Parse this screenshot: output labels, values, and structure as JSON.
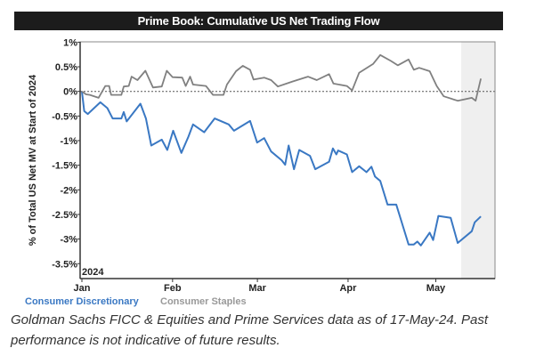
{
  "chart_data": {
    "type": "line",
    "title": "Prime Book: Cumulative US Net Trading Flow",
    "ylabel": "% of Total US Net MV at Start of 2024",
    "xlabel": "",
    "x_unit": "day of 2024 (0 = Jan 1)",
    "ylim": [
      -3.8,
      1.0
    ],
    "yticks": [
      1,
      0.5,
      0,
      -0.5,
      -1,
      -1.5,
      -2,
      -2.5,
      -3,
      -3.5
    ],
    "ytick_labels": [
      "1%",
      "0.5%",
      "0%",
      "-0.5%",
      "-1%",
      "-1.5%",
      "-2%",
      "-2.5%",
      "-3%",
      "-3.5%"
    ],
    "xticks": [
      0,
      31,
      60,
      91,
      121
    ],
    "xtick_labels": [
      "Jan",
      "Feb",
      "Mar",
      "Apr",
      "May"
    ],
    "year_label": "2024",
    "shaded_region": [
      129.7,
      139
    ],
    "reference_line": 0,
    "legend_position": "bottom-left",
    "series": [
      {
        "name": "Consumer Discretionary",
        "color": "#3a78c3",
        "x": [
          0,
          0.8,
          2,
          6.3,
          8.7,
          10.5,
          13.5,
          14.3,
          15.3,
          20,
          21.9,
          23.7,
          27.3,
          29.2,
          31.2,
          34,
          36.4,
          38,
          41.8,
          45.4,
          50.2,
          52,
          57.5,
          59.9,
          62.3,
          64.7,
          68.3,
          69.5,
          70.7,
          72.5,
          74.3,
          78,
          79.8,
          84.5,
          85.8,
          87,
          87.6,
          90.6,
          92.4,
          94.8,
          97.3,
          99,
          100.2,
          102,
          104.5,
          107.5,
          111.7,
          113.5,
          114.7,
          115.9,
          118.9,
          120.1,
          121.9,
          126.1,
          128.5,
          133.3,
          134.3,
          136.4
        ],
        "y": [
          0,
          -0.4,
          -0.46,
          -0.22,
          -0.34,
          -0.55,
          -0.55,
          -0.42,
          -0.61,
          -0.25,
          -0.55,
          -1.1,
          -0.98,
          -1.19,
          -0.8,
          -1.25,
          -0.92,
          -0.67,
          -0.83,
          -0.55,
          -0.67,
          -0.8,
          -0.6,
          -1.04,
          -0.95,
          -1.22,
          -1.4,
          -1.49,
          -1.1,
          -1.58,
          -1.19,
          -1.31,
          -1.58,
          -1.43,
          -1.16,
          -1.28,
          -1.2,
          -1.28,
          -1.64,
          -1.52,
          -1.64,
          -1.53,
          -1.73,
          -1.82,
          -2.3,
          -2.3,
          -3.11,
          -3.11,
          -3.05,
          -3.13,
          -2.87,
          -3.02,
          -2.53,
          -2.57,
          -3.08,
          -2.84,
          -2.66,
          -2.54
        ]
      },
      {
        "name": "Consumer Staples",
        "color": "#808080",
        "x": [
          0,
          1.4,
          2.7,
          5.7,
          8,
          9.3,
          10,
          13.5,
          14.3,
          16,
          17,
          19,
          21.7,
          24.3,
          27.3,
          29,
          31,
          34.3,
          35.5,
          37,
          38,
          42.4,
          44.8,
          48.4,
          49.6,
          52.7,
          55,
          57.5,
          58.7,
          62.3,
          64.7,
          67,
          72,
          77.3,
          80.3,
          84.5,
          86,
          90.6,
          92.4,
          94.8,
          99.6,
          102,
          105.6,
          108,
          111.7,
          113.5,
          115.3,
          118.9,
          121.3,
          123.7,
          128.5,
          133.3,
          134.6,
          136.4
        ],
        "y": [
          0,
          -0.06,
          -0.07,
          -0.13,
          0.11,
          0.11,
          -0.07,
          -0.07,
          0.1,
          0.11,
          0.3,
          0.23,
          0.42,
          0.08,
          0.1,
          0.42,
          0.29,
          0.28,
          0.11,
          0.3,
          0.14,
          0.11,
          -0.07,
          -0.07,
          0.14,
          0.41,
          0.52,
          0.44,
          0.24,
          0.28,
          0.23,
          0.1,
          0.2,
          0.3,
          0.23,
          0.35,
          0.16,
          0.11,
          0.02,
          0.38,
          0.56,
          0.74,
          0.62,
          0.53,
          0.65,
          0.44,
          0.48,
          0.41,
          0.11,
          -0.1,
          -0.19,
          -0.13,
          -0.19,
          0.26
        ]
      }
    ]
  },
  "footnote": "Goldman Sachs FICC & Equities and Prime Services data as of 17-May-24. Past performance is not indicative of future results."
}
